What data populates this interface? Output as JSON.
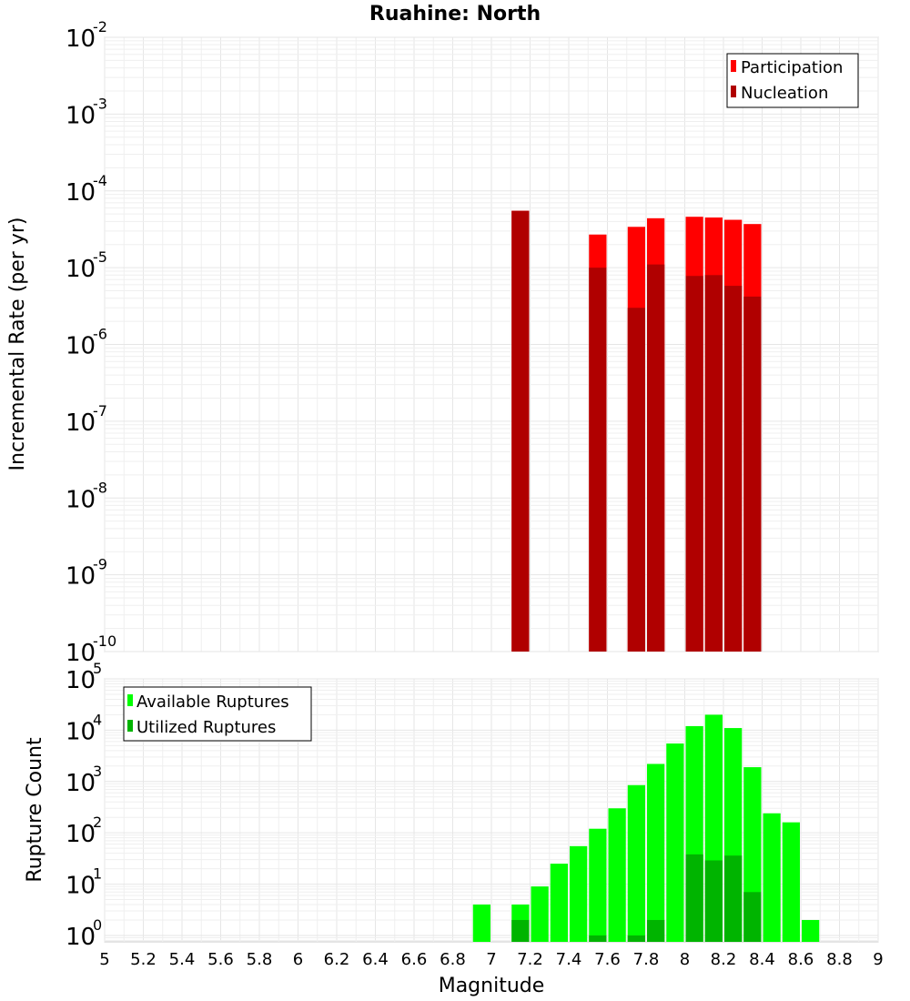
{
  "title": "Ruahine: North",
  "chart_data": [
    {
      "type": "bar",
      "id": "rate",
      "ylabel": "Incremental Rate (per yr)",
      "yscale": "log",
      "ylim": [
        1e-10,
        0.01
      ],
      "y_tick_exponents": [
        "-10",
        "-9",
        "-8",
        "-7",
        "-6",
        "-5",
        "-4",
        "-3",
        "-2"
      ],
      "legend_position": "top-right",
      "series": [
        {
          "name": "Participation",
          "color": "#ff0000",
          "points": [
            [
              7.1,
              5.5e-05
            ],
            [
              7.5,
              2.7e-05
            ],
            [
              7.7,
              3.4e-05
            ],
            [
              7.8,
              4.4e-05
            ],
            [
              8.0,
              4.6e-05
            ],
            [
              8.1,
              4.5e-05
            ],
            [
              8.2,
              4.2e-05
            ],
            [
              8.3,
              3.7e-05
            ]
          ]
        },
        {
          "name": "Nucleation",
          "color": "#b00000",
          "points": [
            [
              7.1,
              5.5e-05
            ],
            [
              7.5,
              1e-05
            ],
            [
              7.7,
              3e-06
            ],
            [
              7.8,
              1.1e-05
            ],
            [
              8.0,
              7.8e-06
            ],
            [
              8.1,
              8e-06
            ],
            [
              8.2,
              5.8e-06
            ],
            [
              8.3,
              4.2e-06
            ]
          ]
        }
      ]
    },
    {
      "type": "bar",
      "id": "count",
      "ylabel": "Rupture Count",
      "yscale": "log",
      "ylim": [
        0.75,
        100000
      ],
      "y_tick_exponents": [
        "0",
        "1",
        "2",
        "3",
        "4",
        "5"
      ],
      "legend_position": "top-left",
      "series": [
        {
          "name": "Available Ruptures",
          "color": "#00ff00",
          "points": [
            [
              6.9,
              4
            ],
            [
              7.1,
              4
            ],
            [
              7.2,
              9
            ],
            [
              7.3,
              25
            ],
            [
              7.4,
              55
            ],
            [
              7.5,
              120
            ],
            [
              7.6,
              300
            ],
            [
              7.7,
              850
            ],
            [
              7.8,
              2200
            ],
            [
              7.9,
              5500
            ],
            [
              8.0,
              12000
            ],
            [
              8.1,
              20000
            ],
            [
              8.2,
              11000
            ],
            [
              8.3,
              1900
            ],
            [
              8.4,
              240
            ],
            [
              8.5,
              160
            ],
            [
              8.6,
              2
            ]
          ]
        },
        {
          "name": "Utilized Ruptures",
          "color": "#00b400",
          "points": [
            [
              7.1,
              2
            ],
            [
              7.5,
              1
            ],
            [
              7.7,
              1
            ],
            [
              7.8,
              2
            ],
            [
              8.0,
              38
            ],
            [
              8.1,
              29
            ],
            [
              8.2,
              36
            ],
            [
              8.3,
              7
            ]
          ]
        }
      ]
    }
  ],
  "x_axis": {
    "label": "Magnitude",
    "range": [
      5,
      9
    ],
    "bin_width": 0.1,
    "tick_labels": [
      "5",
      "5.2",
      "5.4",
      "5.6",
      "5.8",
      "6",
      "6.2",
      "6.4",
      "6.6",
      "6.8",
      "7",
      "7.2",
      "7.4",
      "7.6",
      "7.8",
      "8",
      "8.2",
      "8.4",
      "8.6",
      "8.8",
      "9"
    ]
  }
}
